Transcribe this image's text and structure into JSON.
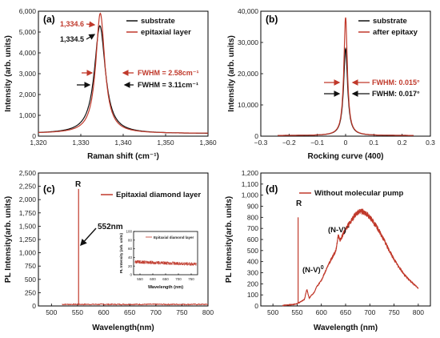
{
  "chart_data": [
    {
      "panel": "(a)",
      "type": "line",
      "xlabel": "Raman shift (cm⁻¹)",
      "ylabel": "Intensity (arb. units)",
      "xlim": [
        1320,
        1360
      ],
      "ylim": [
        0,
        6000
      ],
      "xticks": [
        1320,
        1330,
        1340,
        1350,
        1360
      ],
      "yticks": [
        0,
        1000,
        2000,
        3000,
        4000,
        5000,
        6000
      ],
      "xtick_labels": [
        "1,320",
        "1,330",
        "1,340",
        "1,350",
        "1,360"
      ],
      "ytick_labels": [
        "0",
        "1,000",
        "2,000",
        "3,000",
        "4,000",
        "5,000",
        "6,000"
      ],
      "series": [
        {
          "name": "substrate",
          "color": "#111111",
          "peak_x": 1334.5,
          "peak_y": 5300,
          "fwhm": 3.11,
          "baseline": 120
        },
        {
          "name": "epitaxial layer",
          "color": "#c0392b",
          "peak_x": 1334.6,
          "peak_y": 5900,
          "fwhm": 2.58,
          "baseline": 130
        }
      ],
      "annotations": [
        {
          "text": "1,334.6",
          "color": "#c0392b"
        },
        {
          "text": "1,334.5",
          "color": "#111111"
        },
        {
          "text": "FWHM = 2.58cm⁻¹",
          "color": "#c0392b"
        },
        {
          "text": "FWHM = 3.11cm⁻¹",
          "color": "#111111"
        }
      ]
    },
    {
      "panel": "(b)",
      "type": "line",
      "xlabel": "Rocking curve (400)",
      "ylabel": "Intensity (arb. units)",
      "xlim": [
        -0.3,
        0.3
      ],
      "ylim": [
        0,
        40000
      ],
      "xticks": [
        -0.3,
        -0.2,
        -0.1,
        0,
        0.1,
        0.2,
        0.3
      ],
      "yticks": [
        0,
        10000,
        20000,
        30000,
        40000
      ],
      "xtick_labels": [
        "−0.3",
        "−0.2",
        "−0.1",
        "0",
        "0.1",
        "0.2",
        "0.3"
      ],
      "ytick_labels": [
        "0",
        "10,000",
        "20,000",
        "30,000",
        "40,000"
      ],
      "series": [
        {
          "name": "substrate",
          "color": "#111111",
          "peak_x": 0,
          "peak_y": 28000,
          "fwhm": 0.017,
          "baseline": 200,
          "x_range": [
            -0.24,
            0.24
          ]
        },
        {
          "name": "after epitaxy",
          "color": "#c0392b",
          "peak_x": 0,
          "peak_y": 38000,
          "fwhm": 0.015,
          "baseline": 200,
          "x_range": [
            -0.24,
            0.24
          ]
        }
      ],
      "annotations": [
        {
          "text": "FWHM: 0.015°",
          "color": "#c0392b"
        },
        {
          "text": "FWHM: 0.017°",
          "color": "#111111"
        }
      ]
    },
    {
      "panel": "(c)",
      "type": "line",
      "xlabel": "Wavelength(nm)",
      "ylabel": "PL Intensity(arb. units)",
      "xlim": [
        475,
        800
      ],
      "ylim": [
        0,
        2500
      ],
      "xticks": [
        500,
        550,
        600,
        650,
        700,
        750,
        800
      ],
      "yticks": [
        0,
        250,
        500,
        750,
        1000,
        1250,
        1500,
        1750,
        2000,
        2250,
        2500
      ],
      "xtick_labels": [
        "500",
        "550",
        "600",
        "650",
        "700",
        "750",
        "800"
      ],
      "ytick_labels": [
        "0",
        "250",
        "500",
        "750",
        "1,000",
        "1,250",
        "1,500",
        "1,750",
        "2,000",
        "2,250",
        "2,500"
      ],
      "series": [
        {
          "name": "Epitaxial diamond layer",
          "color": "#c0392b",
          "x_range": [
            520,
            800
          ],
          "baseline": 30,
          "spike_x": 552,
          "spike_y": 2200
        }
      ],
      "annotations": [
        {
          "text": "R",
          "color": "#111111"
        },
        {
          "text": "552nm",
          "color": "#111111"
        }
      ],
      "inset": {
        "legend": "Epitaxial diamond layer",
        "xlabel": "Wavelength (nm)",
        "ylabel": "PL Intensity (arb. units)",
        "xlim": [
          525,
          775
        ],
        "ylim": [
          0,
          100
        ],
        "xticks": [
          550,
          600,
          650,
          700,
          750
        ],
        "yticks": [
          0,
          20,
          40,
          60,
          80,
          100
        ],
        "xtick_labels": [
          "550",
          "600",
          "650",
          "700",
          "750"
        ],
        "ytick_labels": [
          "0",
          "20",
          "40",
          "60",
          "80",
          "100"
        ],
        "series": [
          {
            "name": "Epitaxial diamond layer",
            "color": "#c0392b",
            "start_y": 30,
            "end_y": 24
          }
        ]
      }
    },
    {
      "panel": "(d)",
      "type": "line",
      "xlabel": "Wavelength (nm)",
      "ylabel": "PL Intensity(arb. units)",
      "xlim": [
        475,
        825
      ],
      "ylim": [
        0,
        1200
      ],
      "xticks": [
        500,
        550,
        600,
        650,
        700,
        750,
        800
      ],
      "yticks": [
        0,
        100,
        200,
        300,
        400,
        500,
        600,
        700,
        800,
        900,
        1000,
        1100,
        1200
      ],
      "xtick_labels": [
        "500",
        "550",
        "600",
        "650",
        "700",
        "750",
        "800"
      ],
      "ytick_labels": [
        "0",
        "100",
        "200",
        "300",
        "400",
        "500",
        "600",
        "700",
        "800",
        "900",
        "1,000",
        "1,100",
        "1,200"
      ],
      "series": [
        {
          "name": "Without molecular pump",
          "color": "#c0392b",
          "x": [
            520,
            530,
            540,
            550,
            560,
            565,
            570,
            575,
            580,
            585,
            590,
            600,
            610,
            620,
            630,
            635,
            638,
            642,
            650,
            660,
            670,
            680,
            690,
            700,
            710,
            720,
            730,
            740,
            750,
            760,
            770,
            780,
            790,
            800
          ],
          "y": [
            5,
            8,
            12,
            20,
            45,
            60,
            150,
            70,
            100,
            120,
            170,
            230,
            330,
            420,
            500,
            640,
            590,
            620,
            690,
            760,
            820,
            860,
            840,
            800,
            740,
            670,
            590,
            500,
            420,
            350,
            290,
            240,
            200,
            160
          ]
        }
      ],
      "spike": {
        "x": 552,
        "y": 800
      },
      "annotations": [
        {
          "text": "R",
          "color": "#111111"
        },
        {
          "text": "(N-V)",
          "sup": "0",
          "color": "#111111"
        },
        {
          "text": "(N-V)",
          "sup": "−",
          "color": "#111111"
        }
      ]
    }
  ]
}
